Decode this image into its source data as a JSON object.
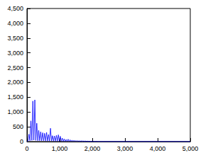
{
  "chart_data": {
    "type": "line",
    "color": "#0000ff",
    "grid": false,
    "x": [
      0,
      30,
      60,
      90,
      120,
      150,
      180,
      210,
      240,
      270,
      300,
      330,
      360,
      390,
      420,
      450,
      480,
      510,
      540,
      570,
      600,
      630,
      660,
      690,
      720,
      750,
      780,
      810,
      840,
      870,
      900,
      930,
      960,
      990,
      1020,
      1050,
      1080,
      1110,
      1140,
      1170,
      1200,
      1230,
      1260,
      1290,
      1320,
      1350,
      1380,
      1410,
      1440,
      1470,
      1500,
      1530,
      1560,
      1590,
      1620,
      1650,
      1680,
      1710,
      1740,
      1770,
      1800,
      1830,
      1860,
      1890,
      1920,
      1950,
      1980,
      2010,
      2040,
      2070,
      2100,
      2200,
      2500,
      3000,
      3500,
      4000,
      4500,
      5000
    ],
    "values": [
      0,
      20,
      250,
      30,
      700,
      40,
      1370,
      50,
      1410,
      40,
      620,
      30,
      380,
      30,
      330,
      25,
      300,
      25,
      280,
      20,
      310,
      20,
      240,
      20,
      450,
      20,
      200,
      15,
      190,
      15,
      210,
      15,
      230,
      15,
      180,
      12,
      120,
      10,
      90,
      10,
      70,
      8,
      80,
      8,
      60,
      6,
      50,
      6,
      45,
      5,
      40,
      5,
      35,
      4,
      30,
      4,
      30,
      3,
      25,
      3,
      20,
      3,
      15,
      2,
      12,
      2,
      10,
      2,
      8,
      1,
      5,
      1,
      2,
      1,
      1,
      1,
      1,
      0
    ],
    "xlim": [
      0,
      5000
    ],
    "xticks": [
      0,
      1000,
      2000,
      3000,
      4000,
      5000
    ],
    "ylim": [
      0,
      4500
    ],
    "yticks": [
      0,
      500,
      1000,
      1500,
      2000,
      2500,
      3000,
      3500,
      4000,
      4500
    ]
  }
}
